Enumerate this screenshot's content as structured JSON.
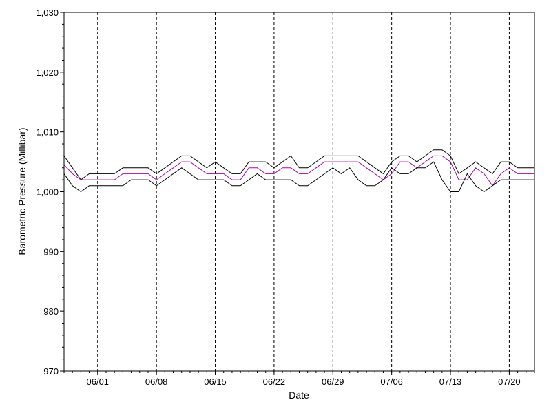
{
  "chart_data": {
    "type": "line",
    "xlabel": "Date",
    "ylabel": "Barometric Pressure (Millibar)",
    "ylim": [
      970,
      1030
    ],
    "y_ticks": [
      970,
      980,
      990,
      1000,
      1010,
      1020,
      1030
    ],
    "y_tick_labels": [
      "970",
      "980",
      "990",
      "1,000",
      "1,010",
      "1,020",
      "1,030"
    ],
    "x_ticks": [
      "06/01",
      "06/08",
      "06/15",
      "06/22",
      "06/29",
      "07/06",
      "07/13",
      "07/20"
    ],
    "x_start": "05/28",
    "x_end": "07/23",
    "grid": {
      "vertical": "dashed",
      "horizontal": false
    },
    "colors": {
      "max": "#000000",
      "mean": "#b000b0",
      "min": "#000000"
    },
    "x": [
      "05/28",
      "05/29",
      "05/30",
      "05/31",
      "06/01",
      "06/02",
      "06/03",
      "06/04",
      "06/05",
      "06/06",
      "06/07",
      "06/08",
      "06/09",
      "06/10",
      "06/11",
      "06/12",
      "06/13",
      "06/14",
      "06/15",
      "06/16",
      "06/17",
      "06/18",
      "06/19",
      "06/20",
      "06/21",
      "06/22",
      "06/23",
      "06/24",
      "06/25",
      "06/26",
      "06/27",
      "06/28",
      "06/29",
      "06/30",
      "07/01",
      "07/02",
      "07/03",
      "07/04",
      "07/05",
      "07/06",
      "07/07",
      "07/08",
      "07/09",
      "07/10",
      "07/11",
      "07/12",
      "07/13",
      "07/14",
      "07/15",
      "07/16",
      "07/17",
      "07/18",
      "07/19",
      "07/20",
      "07/21",
      "07/22",
      "07/23"
    ],
    "series": [
      {
        "key": "max",
        "values": [
          1006,
          1004,
          1002,
          1003,
          1003,
          1003,
          1003,
          1004,
          1004,
          1004,
          1004,
          1003,
          1004,
          1005,
          1006,
          1006,
          1005,
          1004,
          1005,
          1004,
          1003,
          1003,
          1005,
          1005,
          1005,
          1004,
          1005,
          1006,
          1004,
          1004,
          1005,
          1006,
          1006,
          1006,
          1006,
          1006,
          1005,
          1004,
          1003,
          1005,
          1006,
          1006,
          1005,
          1006,
          1007,
          1007,
          1006,
          1003,
          1004,
          1005,
          1004,
          1003,
          1005,
          1005,
          1004,
          1004,
          1004
        ]
      },
      {
        "key": "mean",
        "values": [
          1004.5,
          1003,
          1002,
          1002,
          1002,
          1002,
          1002,
          1003,
          1003,
          1003,
          1003,
          1002,
          1003,
          1004,
          1005,
          1005,
          1004,
          1003,
          1003,
          1003,
          1002,
          1002,
          1004,
          1004,
          1003,
          1003,
          1004,
          1004,
          1003,
          1003,
          1004,
          1005,
          1005,
          1005,
          1005,
          1005,
          1004,
          1003,
          1002,
          1003,
          1005,
          1005,
          1004,
          1005,
          1006,
          1006,
          1005,
          1002,
          1002,
          1004,
          1003,
          1001,
          1003,
          1004,
          1003,
          1003,
          1003
        ]
      },
      {
        "key": "min",
        "values": [
          1003,
          1001,
          1000,
          1001,
          1001,
          1001,
          1001,
          1001,
          1002,
          1002,
          1002,
          1001,
          1002,
          1003,
          1004,
          1003,
          1002,
          1002,
          1002,
          1002,
          1001,
          1001,
          1002,
          1003,
          1002,
          1002,
          1002,
          1002,
          1001,
          1001,
          1002,
          1003,
          1004,
          1003,
          1004,
          1002,
          1001,
          1001,
          1002,
          1004,
          1003,
          1003,
          1004,
          1004,
          1005,
          1002,
          1000,
          1000,
          1003,
          1001,
          1000,
          1001,
          1002,
          1002,
          1002,
          1002,
          1002
        ]
      }
    ]
  }
}
